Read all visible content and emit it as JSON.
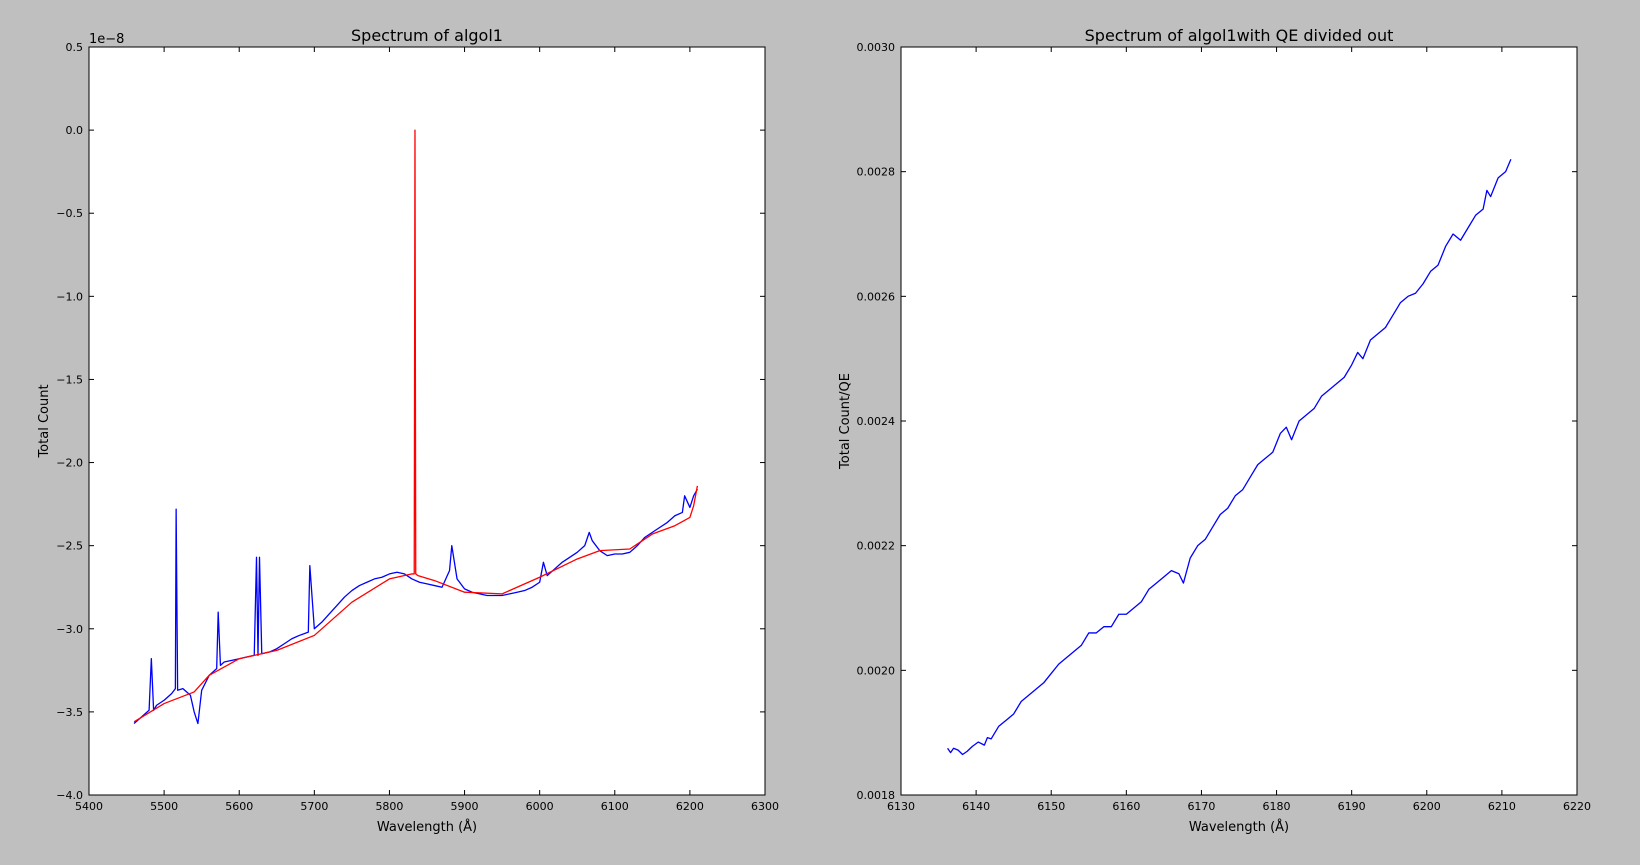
{
  "figure": {
    "background": "#bfbfbf"
  },
  "chart_data": [
    {
      "type": "line",
      "title": "Spectrum of algol1",
      "xlabel": "Wavelength (Å)",
      "ylabel": "Total Count",
      "y_offset_label": "1e−8",
      "xlim": [
        5400,
        6300
      ],
      "ylim": [
        -4.0,
        0.5
      ],
      "y_scale_factor": "1e-8",
      "xticks": [
        "5400",
        "5500",
        "5600",
        "5700",
        "5800",
        "5900",
        "6000",
        "6100",
        "6200",
        "6300"
      ],
      "yticks": [
        "0.5",
        "0.0",
        "−0.5",
        "−1.0",
        "−1.5",
        "−2.0",
        "−2.5",
        "−3.0",
        "−3.5",
        "−4.0"
      ],
      "grid": false,
      "series": [
        {
          "color": "#0000ff",
          "x": [
            5460,
            5470,
            5480,
            5483,
            5486,
            5490,
            5500,
            5510,
            5515,
            5516,
            5518,
            5525,
            5535,
            5540,
            5545,
            5550,
            5560,
            5570,
            5572,
            5575,
            5580,
            5590,
            5600,
            5610,
            5620,
            5623,
            5625,
            5627,
            5630,
            5640,
            5650,
            5660,
            5670,
            5680,
            5692,
            5694,
            5700,
            5710,
            5720,
            5730,
            5740,
            5750,
            5760,
            5770,
            5780,
            5790,
            5800,
            5810,
            5820,
            5830,
            5840,
            5850,
            5860,
            5870,
            5880,
            5883,
            5890,
            5900,
            5910,
            5920,
            5930,
            5940,
            5950,
            5960,
            5970,
            5980,
            5990,
            6000,
            6005,
            6010,
            6020,
            6030,
            6040,
            6050,
            6060,
            6066,
            6070,
            6080,
            6090,
            6100,
            6110,
            6120,
            6130,
            6140,
            6150,
            6160,
            6170,
            6180,
            6190,
            6193,
            6200,
            6205,
            6210
          ],
          "y": [
            -3.57,
            -3.53,
            -3.49,
            -3.18,
            -3.49,
            -3.46,
            -3.43,
            -3.39,
            -3.36,
            -2.28,
            -3.37,
            -3.36,
            -3.4,
            -3.5,
            -3.57,
            -3.37,
            -3.28,
            -3.24,
            -2.9,
            -3.22,
            -3.2,
            -3.19,
            -3.18,
            -3.17,
            -3.16,
            -2.57,
            -3.16,
            -2.57,
            -3.15,
            -3.14,
            -3.12,
            -3.09,
            -3.06,
            -3.04,
            -3.02,
            -2.62,
            -3.0,
            -2.96,
            -2.91,
            -2.86,
            -2.81,
            -2.77,
            -2.74,
            -2.72,
            -2.7,
            -2.69,
            -2.67,
            -2.66,
            -2.67,
            -2.7,
            -2.72,
            -2.73,
            -2.74,
            -2.75,
            -2.65,
            -2.5,
            -2.7,
            -2.76,
            -2.78,
            -2.79,
            -2.8,
            -2.8,
            -2.8,
            -2.79,
            -2.78,
            -2.77,
            -2.75,
            -2.72,
            -2.6,
            -2.68,
            -2.64,
            -2.6,
            -2.57,
            -2.54,
            -2.5,
            -2.42,
            -2.47,
            -2.53,
            -2.56,
            -2.55,
            -2.55,
            -2.54,
            -2.5,
            -2.45,
            -2.42,
            -2.39,
            -2.36,
            -2.32,
            -2.3,
            -2.2,
            -2.27,
            -2.2,
            -2.16
          ]
        },
        {
          "color": "#ff0000",
          "x": [
            5460,
            5500,
            5540,
            5560,
            5600,
            5650,
            5700,
            5750,
            5800,
            5830,
            5833,
            5834,
            5835,
            5838,
            5860,
            5900,
            5950,
            6000,
            6050,
            6080,
            6120,
            6150,
            6180,
            6200,
            6205,
            6210
          ],
          "y": [
            -3.56,
            -3.45,
            -3.38,
            -3.28,
            -3.18,
            -3.13,
            -3.04,
            -2.84,
            -2.7,
            -2.67,
            -2.67,
            0.0,
            -2.67,
            -2.68,
            -2.71,
            -2.78,
            -2.79,
            -2.69,
            -2.58,
            -2.53,
            -2.52,
            -2.43,
            -2.38,
            -2.33,
            -2.26,
            -2.14
          ]
        }
      ]
    },
    {
      "type": "line",
      "title": "Spectrum of algol1with QE divided out",
      "xlabel": "Wavelength (Å)",
      "ylabel": "Total Count/QE",
      "xlim": [
        6130,
        6220
      ],
      "ylim": [
        0.0018,
        0.003
      ],
      "xticks": [
        "6130",
        "6140",
        "6150",
        "6160",
        "6170",
        "6180",
        "6190",
        "6200",
        "6210",
        "6220"
      ],
      "yticks": [
        "0.0030",
        "0.0028",
        "0.0026",
        "0.0024",
        "0.0022",
        "0.0020",
        "0.0018"
      ],
      "grid": false,
      "series": [
        {
          "color": "#0000ff",
          "x": [
            6136.2,
            6136.6,
            6137.0,
            6137.6,
            6138.2,
            6138.8,
            6139.5,
            6140.3,
            6141.1,
            6141.5,
            6142.0,
            6143.0,
            6144.0,
            6145.0,
            6146.0,
            6147.0,
            6148.0,
            6149.0,
            6150.0,
            6151.0,
            6152.0,
            6153.0,
            6154.0,
            6155.0,
            6156.0,
            6157.0,
            6158.0,
            6159.0,
            6160.0,
            6161.0,
            6162.0,
            6163.0,
            6164.0,
            6165.0,
            6166.0,
            6167.0,
            6167.6,
            6168.5,
            6169.5,
            6170.5,
            6171.5,
            6172.5,
            6173.5,
            6174.5,
            6175.5,
            6176.5,
            6177.5,
            6178.5,
            6179.5,
            6180.5,
            6181.3,
            6182.0,
            6183.0,
            6184.0,
            6185.0,
            6186.0,
            6187.0,
            6188.0,
            6189.0,
            6190.0,
            6190.8,
            6191.5,
            6192.5,
            6193.5,
            6194.5,
            6195.5,
            6196.5,
            6197.5,
            6198.5,
            6199.5,
            6200.5,
            6201.5,
            6202.5,
            6203.5,
            6204.5,
            6205.5,
            6206.5,
            6207.5,
            6208.0,
            6208.5,
            6209.5,
            6210.5,
            6211.2
          ],
          "y": [
            0.001875,
            0.001868,
            0.001875,
            0.001872,
            0.001865,
            0.00187,
            0.001878,
            0.001885,
            0.00188,
            0.001892,
            0.00189,
            0.00191,
            0.00192,
            0.00193,
            0.00195,
            0.00196,
            0.00197,
            0.00198,
            0.001995,
            0.00201,
            0.00202,
            0.00203,
            0.00204,
            0.00206,
            0.00206,
            0.00207,
            0.00207,
            0.00209,
            0.00209,
            0.0021,
            0.00211,
            0.00213,
            0.00214,
            0.00215,
            0.00216,
            0.002155,
            0.00214,
            0.00218,
            0.0022,
            0.00221,
            0.00223,
            0.00225,
            0.00226,
            0.00228,
            0.00229,
            0.00231,
            0.00233,
            0.00234,
            0.00235,
            0.00238,
            0.00239,
            0.00237,
            0.0024,
            0.00241,
            0.00242,
            0.00244,
            0.00245,
            0.00246,
            0.00247,
            0.00249,
            0.00251,
            0.0025,
            0.00253,
            0.00254,
            0.00255,
            0.00257,
            0.00259,
            0.0026,
            0.002605,
            0.00262,
            0.00264,
            0.00265,
            0.00268,
            0.0027,
            0.00269,
            0.00271,
            0.00273,
            0.00274,
            0.00277,
            0.00276,
            0.00279,
            0.0028,
            0.00282
          ]
        }
      ]
    }
  ]
}
